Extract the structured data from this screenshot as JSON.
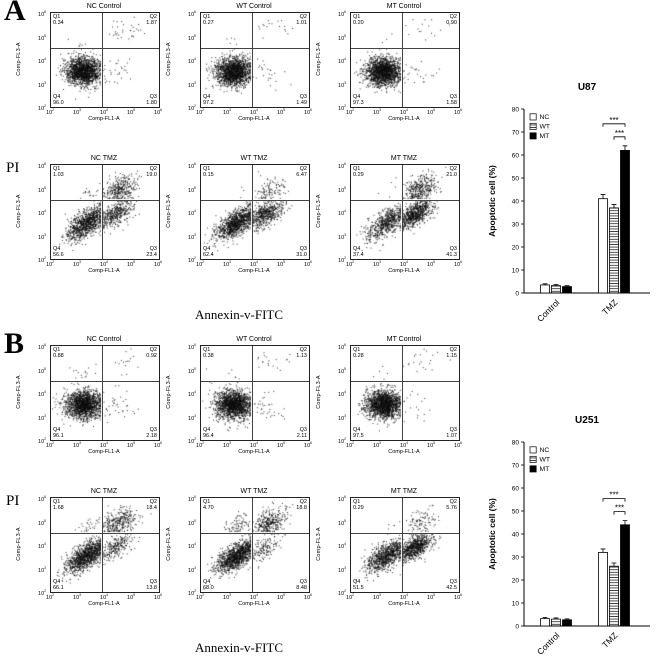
{
  "figure": {
    "pi_label": "PI",
    "x_axis_label": "Annexin-v-FITC",
    "flow_axes": {
      "y_label": "Comp-FL3-A",
      "x_label": "Comp-FL1-A",
      "tick_base": "10",
      "tick_exponents": [
        "2",
        "3",
        "4",
        "5",
        "6"
      ],
      "quadrants": [
        "Q1",
        "Q2",
        "Q3",
        "Q4"
      ]
    },
    "panels": [
      {
        "label": "A",
        "cell_line": "U87",
        "scatter_chart": 0,
        "bar_chart": 1
      },
      {
        "label": "B",
        "cell_line": "U251",
        "scatter_chart": 2,
        "bar_chart": 3
      }
    ]
  },
  "chart_data": [
    {
      "type": "scatter",
      "subtype": "flow-cytometry-quadrants",
      "panel": "A",
      "cell_line": "U87",
      "xlabel": "Comp-FL1-A (Annexin-v-FITC, log scale 1e2-1e6)",
      "ylabel": "Comp-FL3-A (PI, log scale 1e2-1e6)",
      "plots": [
        {
          "title": "NC Control",
          "condition": "Control",
          "group": "NC",
          "Q1": "0.34",
          "Q2": "1.87",
          "Q3": "1.80",
          "Q4": "96.0"
        },
        {
          "title": "WT Control",
          "condition": "Control",
          "group": "WT",
          "Q1": "0.27",
          "Q2": "1.01",
          "Q3": "1.49",
          "Q4": "97.2"
        },
        {
          "title": "MT Control",
          "condition": "Control",
          "group": "MT",
          "Q1": "0.20",
          "Q2": "0.90",
          "Q3": "1.58",
          "Q4": "97.3"
        },
        {
          "title": "NC TMZ",
          "condition": "TMZ",
          "group": "NC",
          "Q1": "1.03",
          "Q2": "19.0",
          "Q3": "23.4",
          "Q4": "56.6"
        },
        {
          "title": "WT TMZ",
          "condition": "TMZ",
          "group": "WT",
          "Q1": "0.15",
          "Q2": "6.47",
          "Q3": "31.0",
          "Q4": "62.4"
        },
        {
          "title": "MT TMZ",
          "condition": "TMZ",
          "group": "MT",
          "Q1": "0.29",
          "Q2": "21.0",
          "Q3": "41.3",
          "Q4": "37.4"
        }
      ]
    },
    {
      "type": "bar",
      "panel": "A",
      "title": "U87",
      "ylabel": "Apoptotic cell (%)",
      "ylim": [
        0,
        80
      ],
      "ytick_step": 10,
      "grid": false,
      "legend_position": "top-left",
      "categories": [
        "Control",
        "TMZ"
      ],
      "series": [
        {
          "name": "NC",
          "fill": "white",
          "values": [
            3.5,
            41
          ],
          "errors": [
            0.5,
            1.8
          ]
        },
        {
          "name": "WT",
          "fill": "hatch",
          "values": [
            3.2,
            37
          ],
          "errors": [
            0.5,
            1.5
          ]
        },
        {
          "name": "MT",
          "fill": "black",
          "values": [
            2.8,
            62
          ],
          "errors": [
            0.4,
            2.0
          ]
        }
      ],
      "significance": [
        {
          "category": "TMZ",
          "compare": [
            "NC",
            "MT"
          ],
          "label": "***"
        },
        {
          "category": "TMZ",
          "compare": [
            "WT",
            "MT"
          ],
          "label": "***"
        }
      ]
    },
    {
      "type": "scatter",
      "subtype": "flow-cytometry-quadrants",
      "panel": "B",
      "cell_line": "U251",
      "xlabel": "Comp-FL1-A (Annexin-v-FITC, log scale 1e2-1e6)",
      "ylabel": "Comp-FL3-A (PI, log scale 1e2-1e6)",
      "plots": [
        {
          "title": "NC Control",
          "condition": "Control",
          "group": "NC",
          "Q1": "0.88",
          "Q2": "0.92",
          "Q3": "2.18",
          "Q4": "96.1"
        },
        {
          "title": "WT Control",
          "condition": "Control",
          "group": "WT",
          "Q1": "0.38",
          "Q2": "1.13",
          "Q3": "2.11",
          "Q4": "96.4"
        },
        {
          "title": "MT Control",
          "condition": "Control",
          "group": "MT",
          "Q1": "0.28",
          "Q2": "1.15",
          "Q3": "1.07",
          "Q4": "97.5"
        },
        {
          "title": "NC TMZ",
          "condition": "TMZ",
          "group": "NC",
          "Q1": "1.68",
          "Q2": "18.4",
          "Q3": "13.8",
          "Q4": "66.1"
        },
        {
          "title": "WT TMZ",
          "condition": "TMZ",
          "group": "WT",
          "Q1": "4.70",
          "Q2": "18.8",
          "Q3": "8.48",
          "Q4": "68.0"
        },
        {
          "title": "MT TMZ",
          "condition": "TMZ",
          "group": "MT",
          "Q1": "0.29",
          "Q2": "5.76",
          "Q3": "42.5",
          "Q4": "51.5"
        }
      ]
    },
    {
      "type": "bar",
      "panel": "B",
      "title": "U251",
      "ylabel": "Apoptotic cell (%)",
      "ylim": [
        0,
        80
      ],
      "ytick_step": 10,
      "grid": false,
      "legend_position": "top-left",
      "categories": [
        "Control",
        "TMZ"
      ],
      "series": [
        {
          "name": "NC",
          "fill": "white",
          "values": [
            3.2,
            32
          ],
          "errors": [
            0.5,
            1.5
          ]
        },
        {
          "name": "WT",
          "fill": "hatch",
          "values": [
            3.0,
            26
          ],
          "errors": [
            0.5,
            1.4
          ]
        },
        {
          "name": "MT",
          "fill": "black",
          "values": [
            2.7,
            44
          ],
          "errors": [
            0.4,
            1.8
          ]
        }
      ],
      "significance": [
        {
          "category": "TMZ",
          "compare": [
            "NC",
            "MT"
          ],
          "label": "***"
        },
        {
          "category": "TMZ",
          "compare": [
            "WT",
            "MT"
          ],
          "label": "***"
        }
      ]
    }
  ]
}
